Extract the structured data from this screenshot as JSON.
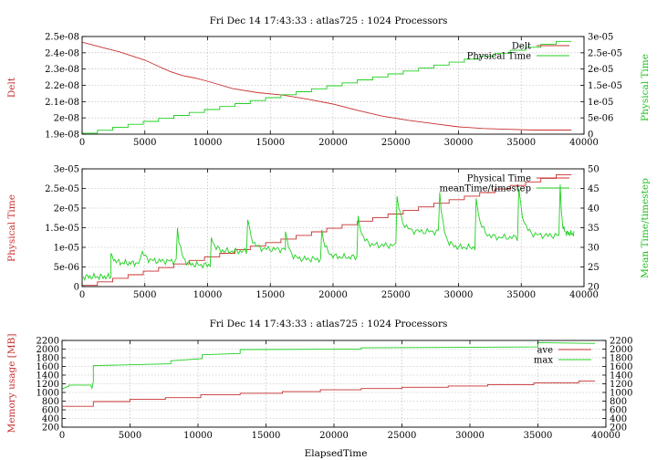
{
  "chart_data": [
    {
      "type": "line",
      "title": "Fri Dec 14 17:43:33 : atlas725 : 1024 Processors",
      "ylabel": "Delt",
      "y2label": "Physical Time",
      "xlim": [
        0,
        40000
      ],
      "ylim": [
        1.9e-08,
        2.5e-08
      ],
      "y2lim": [
        0,
        3e-05
      ],
      "xticks": [
        "0",
        "5000",
        "10000",
        "15000",
        "20000",
        "25000",
        "30000",
        "35000",
        "40000"
      ],
      "yticks": [
        "1.9e-08",
        "2e-08",
        "2.1e-08",
        "2.2e-08",
        "2.3e-08",
        "2.4e-08",
        "2.5e-08"
      ],
      "y2ticks": [
        "0",
        "5e-06",
        "1e-05",
        "1.5e-05",
        "2e-05",
        "2.5e-05",
        "3e-05"
      ],
      "grid": true,
      "legend_position": "top-right",
      "series": [
        {
          "name": "Delt",
          "axis": "left",
          "color": "#c83030",
          "x": [
            0,
            1000,
            2000,
            3000,
            4000,
            5000,
            6000,
            7000,
            8000,
            9000,
            10000,
            12000,
            14000,
            16000,
            18000,
            20000,
            22000,
            24000,
            26000,
            28000,
            30000,
            32000,
            34000,
            36000,
            38000,
            39000
          ],
          "y": [
            2.465e-08,
            2.445e-08,
            2.425e-08,
            2.405e-08,
            2.38e-08,
            2.355e-08,
            2.32e-08,
            2.285e-08,
            2.26e-08,
            2.245e-08,
            2.225e-08,
            2.18e-08,
            2.155e-08,
            2.14e-08,
            2.115e-08,
            2.085e-08,
            2.045e-08,
            2.01e-08,
            1.985e-08,
            1.965e-08,
            1.945e-08,
            1.935e-08,
            1.93e-08,
            1.925e-08,
            1.925e-08,
            1.925e-08
          ]
        },
        {
          "name": "Physical Time",
          "axis": "right",
          "color": "#20d020",
          "x": [
            0,
            39000
          ],
          "y": [
            3e-07,
            2.85e-05
          ],
          "steps": 32
        }
      ]
    },
    {
      "type": "line",
      "title": "",
      "ylabel": "Physical Time",
      "y2label": "Mean Time/timestep",
      "xlim": [
        0,
        40000
      ],
      "ylim": [
        0,
        3e-05
      ],
      "y2lim": [
        20,
        50
      ],
      "xticks": [
        "0",
        "5000",
        "10000",
        "15000",
        "20000",
        "25000",
        "30000",
        "35000",
        "40000"
      ],
      "yticks": [
        "0",
        "5e-06",
        "1e-05",
        "1.5e-05",
        "2e-05",
        "2.5e-05",
        "3e-05"
      ],
      "y2ticks": [
        "20",
        "25",
        "30",
        "35",
        "40",
        "45",
        "50"
      ],
      "grid": true,
      "legend_position": "top-right",
      "series": [
        {
          "name": "Physical Time",
          "axis": "left",
          "color": "#c83030",
          "x": [
            0,
            39000
          ],
          "y": [
            3e-07,
            2.85e-05
          ],
          "steps": 32
        },
        {
          "name": "meanTime/timestep",
          "axis": "right",
          "color": "#20d020",
          "segments": [
            {
              "start": 0,
              "end": 2300,
              "base": 22.5
            },
            {
              "start": 2300,
              "end": 4600,
              "base": 26.0
            },
            {
              "start": 4800,
              "end": 7500,
              "base": 26.5
            },
            {
              "start": 7600,
              "end": 10200,
              "base": 25.5
            },
            {
              "start": 10300,
              "end": 13100,
              "base": 29.0
            },
            {
              "start": 13200,
              "end": 16200,
              "base": 29.5
            },
            {
              "start": 16200,
              "end": 19000,
              "base": 27.0
            },
            {
              "start": 19100,
              "end": 21900,
              "base": 27.5
            },
            {
              "start": 22000,
              "end": 25000,
              "base": 30.5
            },
            {
              "start": 25100,
              "end": 28400,
              "base": 34.0
            },
            {
              "start": 28500,
              "end": 31300,
              "base": 30.0
            },
            {
              "start": 31400,
              "end": 34700,
              "base": 32.5
            },
            {
              "start": 34800,
              "end": 38000,
              "base": 33.0
            },
            {
              "start": 38100,
              "end": 39200,
              "base": 33.5
            }
          ],
          "spikes": [
            {
              "x": 2300,
              "y": 28.5
            },
            {
              "x": 4800,
              "y": 29.0
            },
            {
              "x": 7600,
              "y": 35.0
            },
            {
              "x": 10300,
              "y": 32.5
            },
            {
              "x": 13200,
              "y": 37.0
            },
            {
              "x": 16200,
              "y": 34.0
            },
            {
              "x": 19100,
              "y": 34.5
            },
            {
              "x": 22000,
              "y": 38.0
            },
            {
              "x": 25100,
              "y": 43.0
            },
            {
              "x": 28500,
              "y": 44.0
            },
            {
              "x": 31400,
              "y": 42.5
            },
            {
              "x": 34800,
              "y": 45.0
            },
            {
              "x": 38100,
              "y": 46.0
            }
          ]
        }
      ]
    },
    {
      "type": "line",
      "title": "Fri Dec 14 17:43:33 : atlas725 : 1024 Processors",
      "xlabel": "ElapsedTime",
      "ylabel": "Memory usage [MB]",
      "xlim": [
        0,
        40000
      ],
      "ylim": [
        200,
        2200
      ],
      "y2lim": [
        200,
        2200
      ],
      "xticks": [
        "0",
        "5000",
        "10000",
        "15000",
        "20000",
        "25000",
        "30000",
        "35000",
        "40000"
      ],
      "yticks": [
        "200",
        "400",
        "600",
        "800",
        "1000",
        "1200",
        "1400",
        "1600",
        "1800",
        "2000",
        "2200"
      ],
      "y2ticks": [
        "200",
        "400",
        "600",
        "800",
        "1000",
        "1200",
        "1400",
        "1600",
        "1800",
        "2000",
        "2200"
      ],
      "grid": true,
      "legend_position": "top-right",
      "series": [
        {
          "name": "ave",
          "axis": "left",
          "color": "#c83030",
          "x": [
            0,
            2300,
            2300,
            5000,
            5000,
            7600,
            7600,
            10200,
            10200,
            13100,
            13100,
            16200,
            16200,
            19000,
            19000,
            22000,
            22000,
            25000,
            25000,
            28400,
            28400,
            31300,
            31300,
            34700,
            34700,
            38000,
            38000,
            39200
          ],
          "y": [
            680,
            680,
            790,
            790,
            840,
            840,
            880,
            880,
            950,
            950,
            980,
            980,
            1020,
            1020,
            1060,
            1060,
            1090,
            1090,
            1120,
            1120,
            1150,
            1150,
            1180,
            1180,
            1220,
            1220,
            1260,
            1260
          ]
        },
        {
          "name": "max",
          "axis": "left",
          "color": "#20d020",
          "x": [
            0,
            500,
            500,
            2100,
            2200,
            2300,
            2300,
            8000,
            8000,
            10300,
            10300,
            13100,
            13100,
            22000,
            22000,
            35000,
            35000,
            39200
          ],
          "y": [
            1080,
            1150,
            1170,
            1170,
            1100,
            1250,
            1620,
            1660,
            1730,
            1780,
            1870,
            1900,
            1990,
            2000,
            2030,
            2050,
            2150,
            2130
          ]
        }
      ]
    }
  ]
}
